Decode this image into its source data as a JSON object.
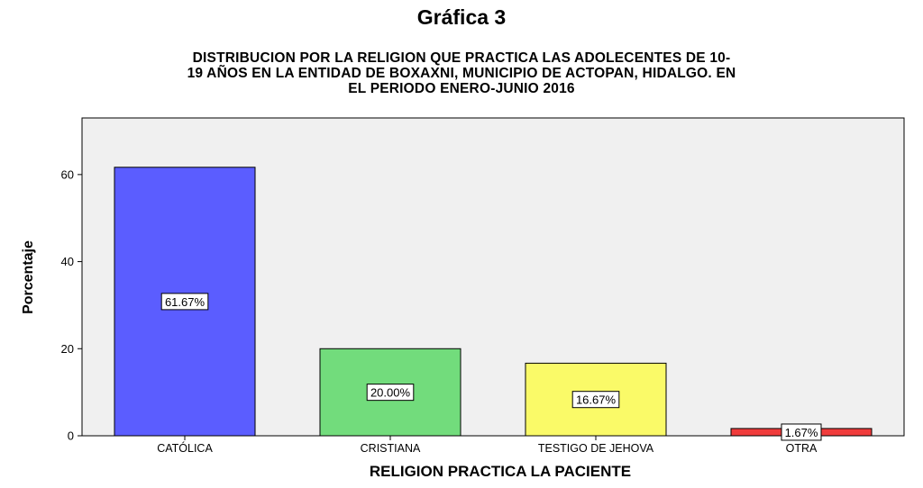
{
  "figure_label": "Gráfica 3",
  "chart_data": {
    "type": "bar",
    "title_lines": [
      "DISTRIBUCION POR LA RELIGION QUE PRACTICA LAS  ADOLECENTES DE 10-",
      "19 AÑOS EN LA ENTIDAD DE BOXAXNI, MUNICIPIO DE ACTOPAN, HIDALGO. EN",
      "EL PERIODO ENERO-JUNIO 2016"
    ],
    "xlabel": "RELIGION PRACTICA LA PACIENTE",
    "ylabel": "Porcentaje",
    "ylim": [
      0,
      73
    ],
    "yticks": [
      0,
      20,
      40,
      60
    ],
    "ytick_labels": [
      "0",
      "20",
      "40",
      "60"
    ],
    "categories": [
      "CATÓLICA",
      "CRISTIANA",
      "TESTIGO DE JEHOVA",
      "OTRA"
    ],
    "values": [
      61.67,
      20.0,
      16.67,
      1.67
    ],
    "data_labels": [
      "61.67%",
      "20.00%",
      "16.67%",
      "1.67%"
    ],
    "colors": [
      "#5b5dff",
      "#72dc7c",
      "#fafa68",
      "#f03c3c"
    ],
    "plot_background": "#f0f0f0",
    "grid": false
  }
}
